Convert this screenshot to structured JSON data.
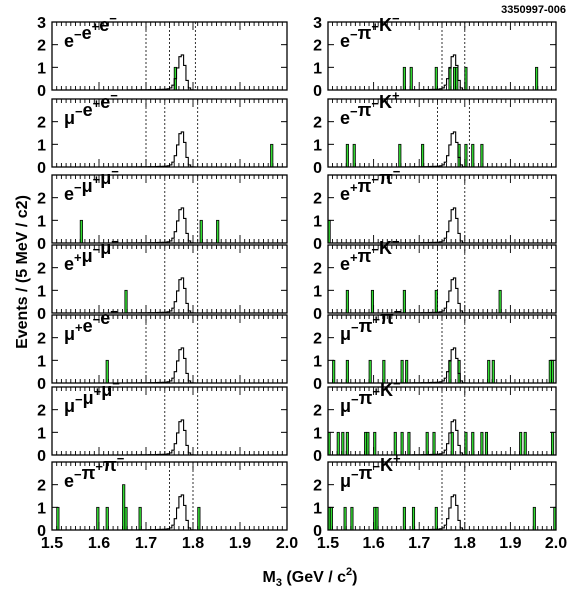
{
  "figure_id": "3350997-006",
  "chart_data": {
    "type": "bar",
    "xlabel": "M3 (GeV / c2)",
    "ylabel": "Events / (5 MeV / c2)",
    "xlim": [
      1.5,
      2.0
    ],
    "ylim": [
      0,
      3
    ],
    "x_ticks": [
      "1.5",
      "1.6",
      "1.7",
      "1.8",
      "1.9",
      "2.0"
    ],
    "y_ticks": [
      "0",
      "1",
      "2",
      "3"
    ],
    "bin_width": 0.005,
    "signal_peak_mass": 1.777,
    "bar_color": "#33dd33",
    "panels": [
      {
        "label_parts": [
          [
            "e",
            "−"
          ],
          [
            "e",
            "+"
          ],
          [
            "e",
            "−"
          ]
        ],
        "bins": [
          [
            1.76,
            1
          ]
        ],
        "lines": [
          1.7,
          1.75,
          1.805
        ]
      },
      {
        "label_parts": [
          [
            "μ",
            "−"
          ],
          [
            "e",
            "+"
          ],
          [
            "e",
            "−"
          ]
        ],
        "bins": [
          [
            1.965,
            1
          ]
        ],
        "lines": [
          1.7,
          1.74,
          1.81
        ]
      },
      {
        "label_parts": [
          [
            "e",
            "−"
          ],
          [
            "μ",
            "+"
          ],
          [
            "μ",
            "−"
          ]
        ],
        "bins": [
          [
            1.56,
            1
          ],
          [
            1.815,
            1
          ],
          [
            1.85,
            1
          ]
        ],
        "lines": [
          1.74,
          1.81
        ]
      },
      {
        "label_parts": [
          [
            "e",
            "+"
          ],
          [
            "μ",
            "−"
          ],
          [
            "μ",
            "−"
          ]
        ],
        "bins": [
          [
            1.655,
            1
          ]
        ],
        "lines": [
          1.74,
          1.81
        ]
      },
      {
        "label_parts": [
          [
            "μ",
            "+"
          ],
          [
            "e",
            "−"
          ],
          [
            "e",
            "−"
          ]
        ],
        "bins": [
          [
            1.615,
            1
          ]
        ],
        "lines": [
          1.7,
          1.74,
          1.81
        ]
      },
      {
        "label_parts": [
          [
            "μ",
            "−"
          ],
          [
            "μ",
            "+"
          ],
          [
            "μ",
            "−"
          ]
        ],
        "bins": [],
        "lines": [
          1.74,
          1.81
        ]
      },
      {
        "label_parts": [
          [
            "e",
            "−"
          ],
          [
            "π",
            "+"
          ],
          [
            "π",
            "−"
          ]
        ],
        "bins": [
          [
            1.51,
            1
          ],
          [
            1.595,
            1
          ],
          [
            1.615,
            1
          ],
          [
            1.65,
            2
          ],
          [
            1.655,
            1
          ],
          [
            1.685,
            1
          ],
          [
            1.81,
            1
          ]
        ],
        "lines": [
          1.75,
          1.8
        ]
      },
      {
        "label_parts": [
          [
            "e",
            "−"
          ],
          [
            "π",
            "+"
          ],
          [
            "K",
            "−"
          ]
        ],
        "bins": [
          [
            1.665,
            1
          ],
          [
            1.68,
            1
          ],
          [
            1.735,
            1
          ],
          [
            1.765,
            1
          ],
          [
            1.775,
            1
          ],
          [
            1.78,
            1
          ],
          [
            1.8,
            1
          ],
          [
            1.955,
            1
          ]
        ],
        "lines": [
          1.75,
          1.8
        ]
      },
      {
        "label_parts": [
          [
            "e",
            "−"
          ],
          [
            "π",
            "−"
          ],
          [
            "K",
            "+"
          ]
        ],
        "bins": [
          [
            1.54,
            1
          ],
          [
            1.555,
            1
          ],
          [
            1.655,
            1
          ],
          [
            1.705,
            1
          ],
          [
            1.785,
            1
          ],
          [
            1.8,
            1
          ],
          [
            1.815,
            1
          ],
          [
            1.835,
            1
          ]
        ],
        "lines": [
          1.74,
          1.81
        ]
      },
      {
        "label_parts": [
          [
            "e",
            "+"
          ],
          [
            "π",
            "−"
          ],
          [
            "π",
            "−"
          ]
        ],
        "bins": [
          [
            1.5,
            1
          ]
        ],
        "lines": [
          1.74,
          1.8
        ]
      },
      {
        "label_parts": [
          [
            "e",
            "+"
          ],
          [
            "π",
            "−"
          ],
          [
            "K",
            "−"
          ]
        ],
        "bins": [
          [
            1.54,
            1
          ],
          [
            1.595,
            1
          ],
          [
            1.665,
            1
          ],
          [
            1.735,
            1
          ],
          [
            1.875,
            1
          ]
        ],
        "lines": [
          1.74,
          1.8
        ]
      },
      {
        "label_parts": [
          [
            "μ",
            "−"
          ],
          [
            "π",
            "+"
          ],
          [
            "π",
            "−"
          ]
        ],
        "bins": [
          [
            1.51,
            1
          ],
          [
            1.54,
            1
          ],
          [
            1.59,
            1
          ],
          [
            1.62,
            1
          ],
          [
            1.66,
            1
          ],
          [
            1.67,
            1
          ],
          [
            1.765,
            1
          ],
          [
            1.785,
            1
          ],
          [
            1.85,
            1
          ],
          [
            1.86,
            1
          ],
          [
            1.985,
            1
          ],
          [
            1.99,
            1
          ]
        ],
        "lines": [
          1.75,
          1.8
        ]
      },
      {
        "label_parts": [
          [
            "μ",
            "−"
          ],
          [
            "π",
            "+"
          ],
          [
            "K",
            "−"
          ]
        ],
        "bins": [
          [
            1.5,
            1
          ],
          [
            1.52,
            1
          ],
          [
            1.53,
            1
          ],
          [
            1.54,
            1
          ],
          [
            1.58,
            1
          ],
          [
            1.585,
            1
          ],
          [
            1.6,
            1
          ],
          [
            1.645,
            1
          ],
          [
            1.66,
            1
          ],
          [
            1.675,
            1
          ],
          [
            1.715,
            1
          ],
          [
            1.73,
            1
          ],
          [
            1.77,
            1
          ],
          [
            1.8,
            1
          ],
          [
            1.815,
            1
          ],
          [
            1.835,
            1
          ],
          [
            1.845,
            1
          ],
          [
            1.92,
            1
          ],
          [
            1.93,
            1
          ],
          [
            1.99,
            1
          ]
        ],
        "lines": [
          1.75,
          1.8
        ]
      },
      {
        "label_parts": [
          [
            "μ",
            "−"
          ],
          [
            "π",
            "−"
          ],
          [
            "K",
            "+"
          ]
        ],
        "bins": [
          [
            1.5,
            1
          ],
          [
            1.505,
            1
          ],
          [
            1.535,
            1
          ],
          [
            1.55,
            1
          ],
          [
            1.6,
            1
          ],
          [
            1.605,
            1
          ],
          [
            1.665,
            1
          ],
          [
            1.685,
            1
          ],
          [
            1.735,
            1
          ],
          [
            1.95,
            1
          ],
          [
            1.995,
            1
          ]
        ],
        "lines": [
          1.75,
          1.8
        ]
      }
    ]
  }
}
